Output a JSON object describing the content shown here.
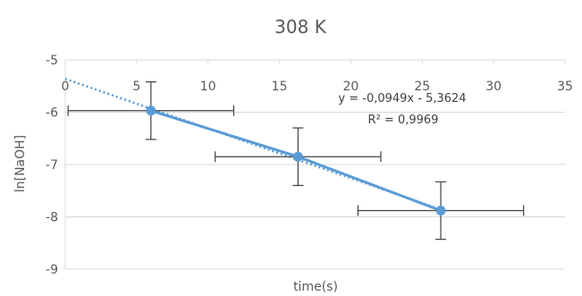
{
  "chart_data": {
    "type": "scatter",
    "title": "308 K",
    "xlabel": "time(s)",
    "ylabel": "ln[NaOH]",
    "xlim": [
      0,
      35
    ],
    "ylim": [
      -9,
      -5
    ],
    "x_ticks": [
      0,
      5,
      10,
      15,
      20,
      25,
      30,
      35
    ],
    "y_ticks": [
      -5,
      -6,
      -7,
      -8,
      -9
    ],
    "x_tick_labels": [
      "0",
      "5",
      "10",
      "15",
      "20",
      "25",
      "30",
      "35"
    ],
    "y_tick_labels": [
      "-5",
      "-6",
      "-7",
      "-8",
      "-9"
    ],
    "grid": "horizontal",
    "legend": "none",
    "series": [
      {
        "points": [
          {
            "x": 6,
            "y": -5.97,
            "x_err": 5.8,
            "y_err": 0.55
          },
          {
            "x": 16.3,
            "y": -6.85,
            "x_err": 5.8,
            "y_err": 0.55
          },
          {
            "x": 26.3,
            "y": -7.88,
            "x_err": 5.8,
            "y_err": 0.55
          }
        ],
        "color": "#5b9bd5"
      }
    ],
    "trendline": {
      "slope": -0.0949,
      "intercept": -5.3624,
      "x_range": [
        0,
        26.3
      ],
      "style": "dotted",
      "color": "#5b9bd5"
    },
    "annotations": {
      "equation": "y = -0,0949x - 5,3624",
      "r_squared": "R² = 0,9969"
    },
    "colors": {
      "series": "#5b9bd5",
      "gridline": "#d9d9d9",
      "error_bar": "#404040",
      "text": "#595959"
    }
  }
}
